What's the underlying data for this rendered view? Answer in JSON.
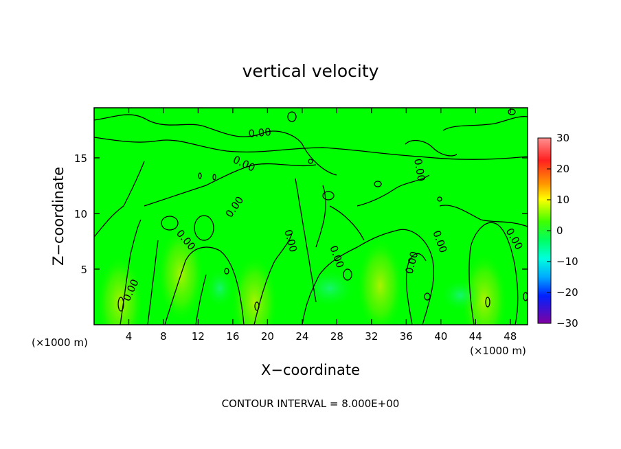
{
  "chart_data": {
    "type": "heatmap",
    "title": "vertical velocity",
    "xlabel": "X−coordinate",
    "ylabel": "Z−coordinate",
    "x_unit_label": "(×1000 m)",
    "y_unit_label": "(×1000 m)",
    "xlim": [
      0,
      50
    ],
    "ylim": [
      0,
      19.5
    ],
    "x_ticks": [
      4,
      8,
      12,
      16,
      20,
      24,
      28,
      32,
      36,
      40,
      44,
      48
    ],
    "y_ticks": [
      5,
      10,
      15
    ],
    "colorbar": {
      "range": [
        -30,
        30
      ],
      "ticks": [
        30,
        20,
        10,
        0,
        -10,
        -20,
        -30
      ],
      "tick_labels": [
        "30",
        "20",
        "10",
        "0",
        "−10",
        "−20",
        "−30"
      ],
      "colors": [
        "#ff8080",
        "#ff0000",
        "#ffaa00",
        "#ffff00",
        "#00ff00",
        "#00ffaa",
        "#00ffff",
        "#0088ff",
        "#0000ff",
        "#6600cc",
        "#800080"
      ]
    },
    "contour_label": "0.00",
    "footer": "CONTOUR INTERVAL = 8.000E+00",
    "updraft_cores": [
      {
        "x": 3.0,
        "z": 2.0
      },
      {
        "x": 10.0,
        "z": 4.5
      },
      {
        "x": 18.5,
        "z": 2.0
      },
      {
        "x": 33.0,
        "z": 3.5
      },
      {
        "x": 45.0,
        "z": 2.2
      }
    ]
  }
}
